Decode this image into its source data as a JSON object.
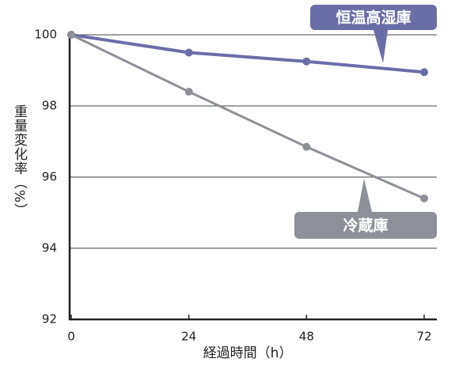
{
  "chart_data": {
    "type": "line",
    "x_label": "経過時間（h）",
    "y_label": "重量変化率（%）",
    "x": [
      0,
      24,
      48,
      72
    ],
    "series": [
      {
        "name": "恒温高湿庫",
        "color": "#6a6ea8",
        "values": [
          100,
          99.5,
          99.25,
          98.95
        ]
      },
      {
        "name": "冷蔵庫",
        "color": "#8e9099",
        "values": [
          100,
          98.4,
          96.85,
          95.4
        ]
      }
    ],
    "xlim": [
      0,
      72
    ],
    "xticks": [
      0,
      24,
      48,
      72
    ],
    "ylim": [
      92,
      100
    ],
    "yticks": [
      92,
      94,
      96,
      98,
      100
    ],
    "grid": true
  }
}
